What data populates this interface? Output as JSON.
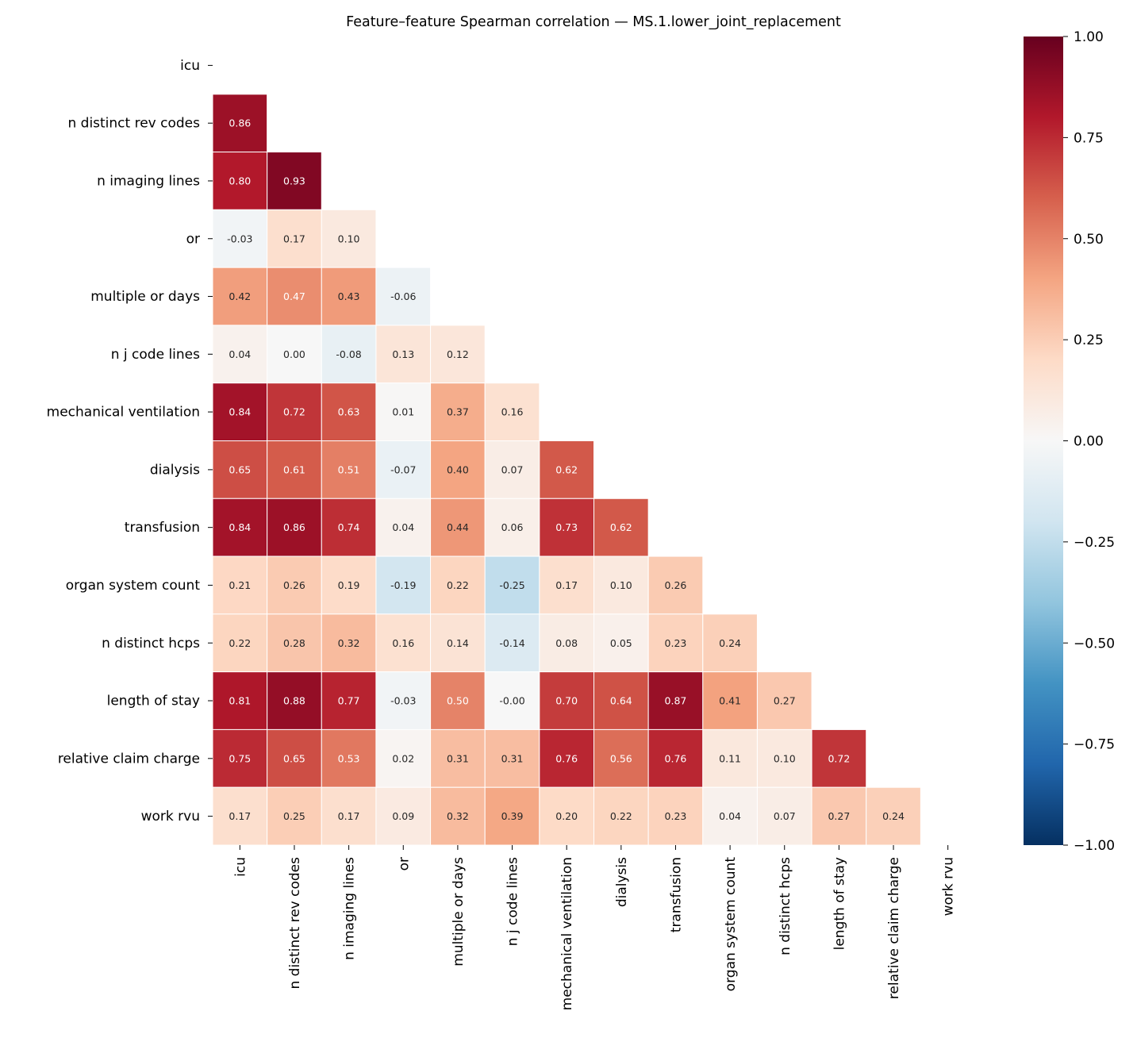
{
  "chart_data": {
    "type": "heatmap",
    "title": "Feature–feature Spearman correlation — MS.1.lower_joint_replacement",
    "labels": [
      "icu",
      "n distinct rev codes",
      "n imaging lines",
      "or",
      "multiple or days",
      "n j code lines",
      "mechanical ventilation",
      "dialysis",
      "transfusion",
      "organ system count",
      "n distinct hcps",
      "length of stay",
      "relative claim charge",
      "work rvu"
    ],
    "lower_triangle": [
      [],
      [
        0.86
      ],
      [
        0.8,
        0.93
      ],
      [
        -0.03,
        0.17,
        0.1
      ],
      [
        0.42,
        0.47,
        0.43,
        -0.06
      ],
      [
        0.04,
        0.0,
        -0.08,
        0.13,
        0.12
      ],
      [
        0.84,
        0.72,
        0.63,
        0.01,
        0.37,
        0.16
      ],
      [
        0.65,
        0.61,
        0.51,
        -0.07,
        0.4,
        0.07,
        0.62
      ],
      [
        0.84,
        0.86,
        0.74,
        0.04,
        0.44,
        0.06,
        0.73,
        0.62
      ],
      [
        0.21,
        0.26,
        0.19,
        -0.19,
        0.22,
        -0.25,
        0.17,
        0.1,
        0.26
      ],
      [
        0.22,
        0.28,
        0.32,
        0.16,
        0.14,
        -0.14,
        0.08,
        0.05,
        0.23,
        0.24
      ],
      [
        0.81,
        0.88,
        0.77,
        -0.03,
        0.5,
        -0.0,
        0.7,
        0.64,
        0.87,
        0.41,
        0.27
      ],
      [
        0.75,
        0.65,
        0.53,
        0.02,
        0.31,
        0.31,
        0.76,
        0.56,
        0.76,
        0.11,
        0.1,
        0.72
      ],
      [
        0.17,
        0.25,
        0.17,
        0.09,
        0.32,
        0.39,
        0.2,
        0.22,
        0.23,
        0.04,
        0.07,
        0.27,
        0.24
      ]
    ],
    "annotation_labels": [
      [],
      [
        "0.86"
      ],
      [
        "0.80",
        "0.93"
      ],
      [
        "-0.03",
        "0.17",
        "0.10"
      ],
      [
        "0.42",
        "0.47",
        "0.43",
        "-0.06"
      ],
      [
        "0.04",
        "0.00",
        "-0.08",
        "0.13",
        "0.12"
      ],
      [
        "0.84",
        "0.72",
        "0.63",
        "0.01",
        "0.37",
        "0.16"
      ],
      [
        "0.65",
        "0.61",
        "0.51",
        "-0.07",
        "0.40",
        "0.07",
        "0.62"
      ],
      [
        "0.84",
        "0.86",
        "0.74",
        "0.04",
        "0.44",
        "0.06",
        "0.73",
        "0.62"
      ],
      [
        "0.21",
        "0.26",
        "0.19",
        "-0.19",
        "0.22",
        "-0.25",
        "0.17",
        "0.10",
        "0.26"
      ],
      [
        "0.22",
        "0.28",
        "0.32",
        "0.16",
        "0.14",
        "-0.14",
        "0.08",
        "0.05",
        "0.23",
        "0.24"
      ],
      [
        "0.81",
        "0.88",
        "0.77",
        "-0.03",
        "0.50",
        "-0.00",
        "0.70",
        "0.64",
        "0.87",
        "0.41",
        "0.27"
      ],
      [
        "0.75",
        "0.65",
        "0.53",
        "0.02",
        "0.31",
        "0.31",
        "0.76",
        "0.56",
        "0.76",
        "0.11",
        "0.10",
        "0.72"
      ],
      [
        "0.17",
        "0.25",
        "0.17",
        "0.09",
        "0.32",
        "0.39",
        "0.20",
        "0.22",
        "0.23",
        "0.04",
        "0.07",
        "0.27",
        "0.24"
      ]
    ],
    "colormap": "RdBu_r",
    "vmin": -1,
    "vmax": 1,
    "colorbar_ticks": [
      "1.00",
      "0.75",
      "0.50",
      "0.25",
      "0.00",
      "−0.25",
      "−0.50",
      "−0.75",
      "−1.00"
    ],
    "colorbar_tick_values": [
      1,
      0.75,
      0.5,
      0.25,
      0,
      -0.25,
      -0.5,
      -0.75,
      -1
    ],
    "colorbar_stops": [
      "#053061",
      "#2166ac",
      "#4393c3",
      "#92c5de",
      "#d1e5f0",
      "#f7f7f7",
      "#fddbc7",
      "#f4a582",
      "#d6604d",
      "#b2182b",
      "#67001f"
    ]
  }
}
